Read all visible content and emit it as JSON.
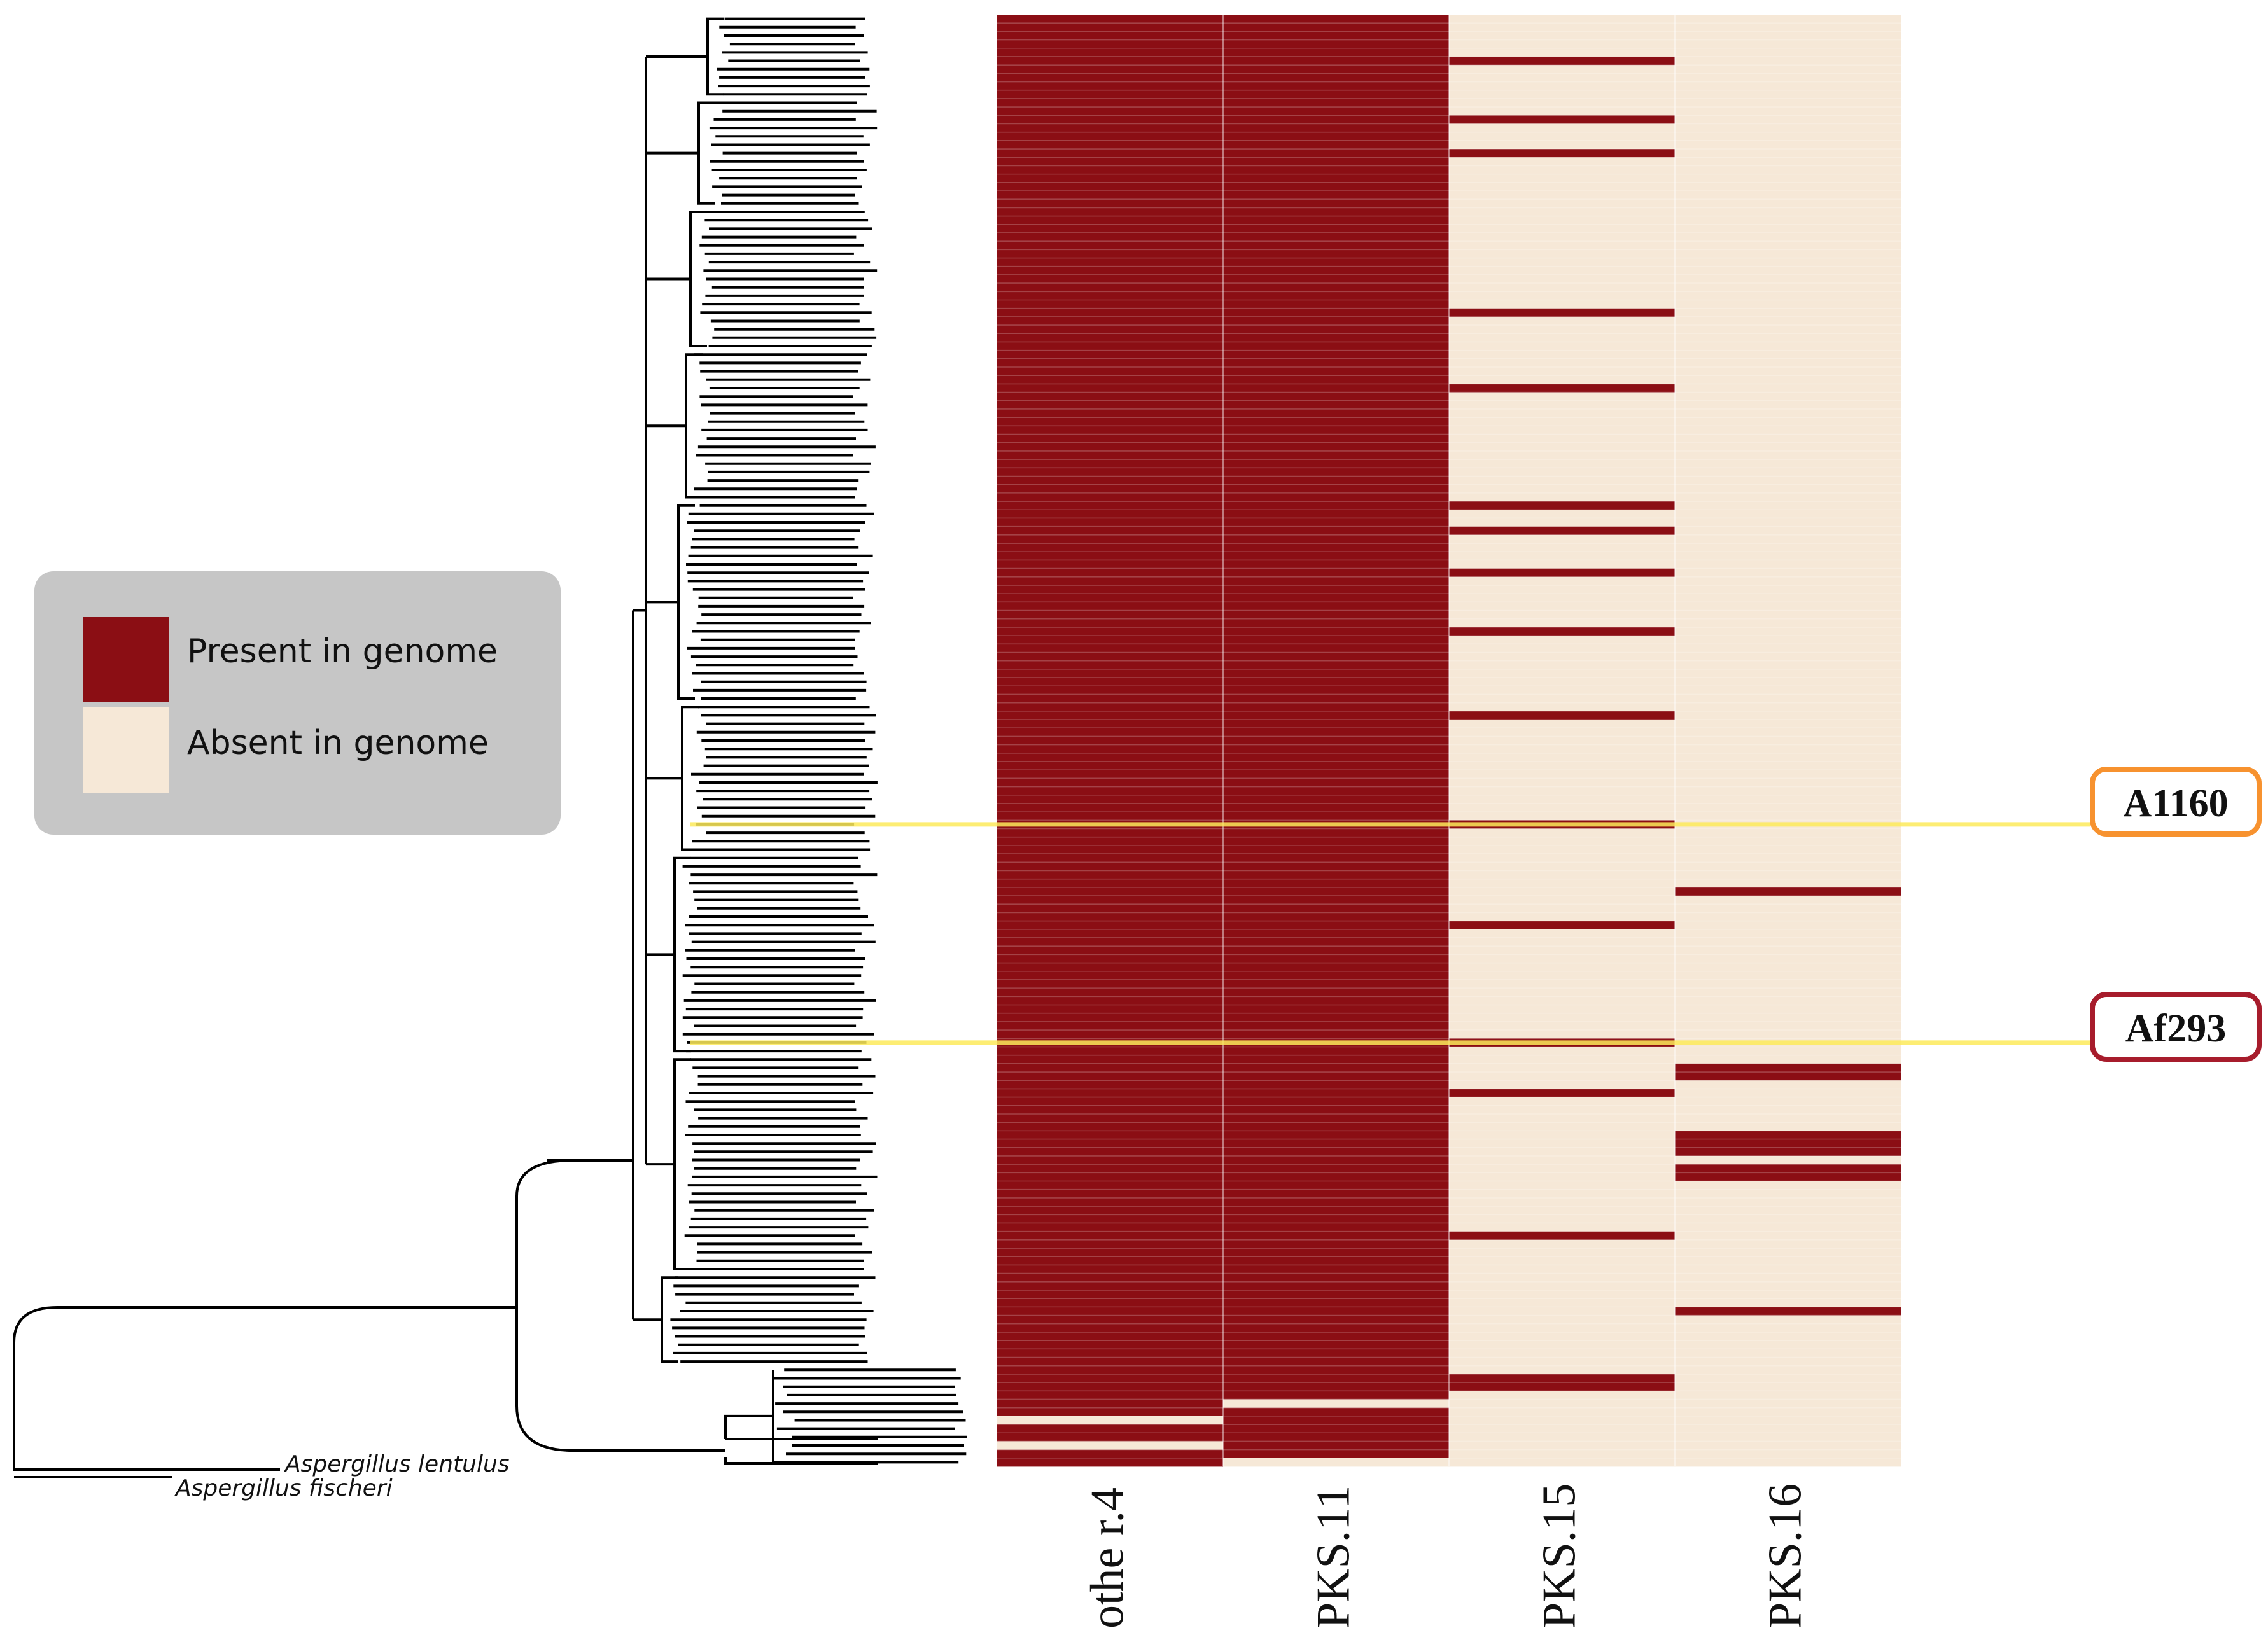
{
  "legend": {
    "present_label": "Present in genome",
    "absent_label": "Absent in genome",
    "present_color": "#8b0e14",
    "absent_color": "#f6e8d7",
    "background_color": "#c6c6c6"
  },
  "highlights": [
    {
      "label": "A1160",
      "border_color": "#f7922f",
      "row": 96
    },
    {
      "label": "Af293",
      "border_color": "#a71c2c",
      "row": 122
    }
  ],
  "tree": {
    "outgroup_labels": [
      "Aspergillus lentulus",
      "Aspergillus fischeri"
    ]
  },
  "chart_data": {
    "type": "heatmap",
    "title": "",
    "xlabel": "",
    "ylabel": "",
    "columns": [
      "othe r.4",
      "PKS.11",
      "PKS.15",
      "PKS.16"
    ],
    "n_rows": 173,
    "values_legend": {
      "1": "Present in genome",
      "0": "Absent in genome"
    },
    "default_by_column": [
      1,
      1,
      0,
      0
    ],
    "absent_rows_by_column": {
      "othe r.4": [
        167,
        170
      ],
      "PKS.11": [
        165,
        172
      ]
    },
    "present_rows_by_column": {
      "PKS.15": [
        5,
        12,
        16,
        35,
        44,
        58,
        61,
        66,
        73,
        83,
        96,
        108,
        122,
        128,
        145,
        162,
        163
      ],
      "PKS.16": [
        104,
        125,
        126,
        133,
        134,
        135,
        137,
        138,
        154
      ]
    },
    "highlighted_rows": {
      "A1160": 96,
      "Af293": 122
    }
  }
}
